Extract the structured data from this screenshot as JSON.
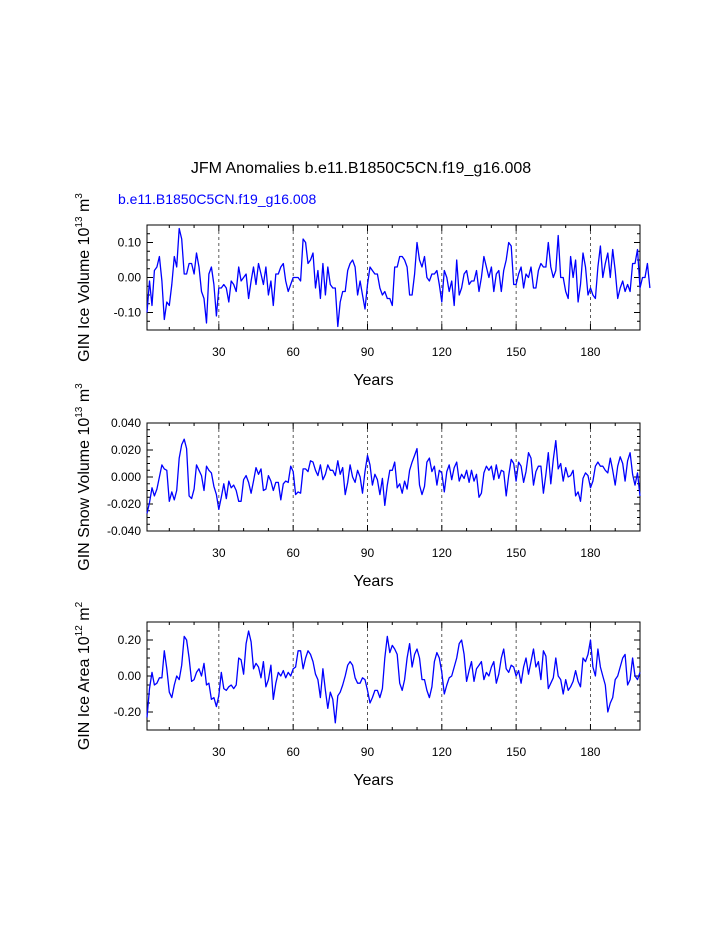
{
  "title": "JFM Anomalies b.e11.B1850C5CN.f19_g16.008",
  "case_label": "b.e11.B1850C5CN.f19_g16.008",
  "line_color": "#0000ff",
  "chart_data": [
    {
      "type": "line",
      "xlabel": "Years",
      "ylabel": "GIN Ice Volume 10",
      "ylabel_exp": "13",
      "ylabel_unit": "m",
      "ylabel_unit_exp": "3",
      "xlim": [
        1,
        200
      ],
      "ylim": [
        -0.15,
        0.15
      ],
      "yticks": [
        -0.1,
        0.0,
        0.1
      ],
      "ytick_labels": [
        "-0.10",
        "0.00",
        "0.10"
      ],
      "xticks": [
        30,
        60,
        90,
        120,
        150,
        180
      ],
      "xtick_labels": [
        "30",
        "60",
        "90",
        "120",
        "150",
        "180"
      ],
      "series": [
        {
          "name": "GIN Ice Volume",
          "values": [
            -0.1,
            -0.01,
            -0.08,
            0.02,
            0.03,
            0.06,
            -0.01,
            -0.12,
            -0.07,
            -0.08,
            -0.02,
            0.06,
            0.03,
            0.14,
            0.11,
            0.01,
            0.01,
            0.04,
            0.04,
            0.01,
            0.07,
            0.03,
            -0.04,
            -0.06,
            -0.13,
            0.01,
            0.03,
            -0.02,
            -0.11,
            -0.03,
            -0.03,
            -0.02,
            -0.03,
            -0.07,
            -0.01,
            -0.02,
            -0.04,
            0.03,
            -0.01,
            0.0,
            0.01,
            -0.06,
            -0.01,
            0.03,
            -0.02,
            0.04,
            0.01,
            -0.02,
            0.03,
            -0.05,
            -0.01,
            -0.08,
            0.01,
            0.01,
            0.03,
            0.04,
            -0.01,
            -0.04,
            -0.02,
            0.0,
            0.0,
            0.0,
            -0.01,
            0.11,
            0.1,
            0.04,
            0.05,
            0.07,
            -0.03,
            0.02,
            -0.06,
            0.04,
            -0.05,
            0.03,
            -0.02,
            -0.03,
            -0.03,
            -0.14,
            -0.07,
            -0.04,
            -0.04,
            0.02,
            0.04,
            0.05,
            0.03,
            -0.05,
            -0.01,
            -0.05,
            -0.09,
            -0.02,
            0.03,
            0.02,
            0.01,
            0.01,
            -0.03,
            -0.05,
            -0.04,
            -0.06,
            -0.06,
            -0.08,
            0.03,
            0.03,
            0.06,
            0.06,
            0.05,
            0.03,
            -0.05,
            -0.05,
            0.01,
            0.1,
            0.05,
            0.03,
            0.06,
            0.0,
            -0.01,
            0.01,
            0.01,
            0.02,
            -0.02,
            -0.07,
            0.02,
            0.0,
            -0.04,
            -0.01,
            -0.08,
            0.05,
            -0.05,
            -0.03,
            0.01,
            0.02,
            -0.02,
            -0.01,
            -0.01,
            0.02,
            -0.04,
            0.0,
            0.06,
            0.03,
            0.0,
            0.03,
            -0.04,
            0.01,
            0.02,
            -0.04,
            0.02,
            0.05,
            0.1,
            0.09,
            -0.02,
            -0.02,
            0.01,
            0.03,
            -0.03,
            0.01,
            0.0,
            0.03,
            -0.03,
            -0.03,
            0.02,
            0.04,
            0.03,
            0.03,
            0.1,
            0.03,
            0.0,
            0.02,
            0.12,
            0.0,
            0.0,
            -0.04,
            -0.06,
            0.06,
            0.0,
            0.05,
            -0.07,
            -0.02,
            0.07,
            0.03,
            -0.05,
            -0.03,
            -0.05,
            -0.06,
            0.03,
            0.09,
            0.0,
            0.04,
            0.07,
            0.0,
            0.08,
            0.02,
            -0.06,
            -0.03,
            -0.01,
            -0.04,
            -0.02,
            -0.04,
            0.04,
            0.04,
            0.08,
            -0.03,
            0.0,
            0.0,
            0.04,
            -0.03
          ]
        }
      ]
    },
    {
      "type": "line",
      "xlabel": "Years",
      "ylabel": "GIN Snow Volume 10",
      "ylabel_exp": "13",
      "ylabel_unit": "m",
      "ylabel_unit_exp": "3",
      "xlim": [
        1,
        200
      ],
      "ylim": [
        -0.04,
        0.04
      ],
      "yticks": [
        -0.04,
        -0.02,
        0.0,
        0.02,
        0.04
      ],
      "ytick_labels": [
        "-0.040",
        "-0.020",
        "0.000",
        "0.020",
        "0.040"
      ],
      "xticks": [
        30,
        60,
        90,
        120,
        150,
        180
      ],
      "xtick_labels": [
        "30",
        "60",
        "90",
        "120",
        "150",
        "180"
      ],
      "series": [
        {
          "name": "GIN Snow Volume",
          "values": [
            -0.027,
            -0.019,
            -0.008,
            -0.014,
            -0.009,
            0.0,
            0.009,
            0.006,
            0.005,
            -0.018,
            -0.011,
            -0.017,
            -0.01,
            0.014,
            0.024,
            0.028,
            0.021,
            -0.014,
            -0.016,
            -0.009,
            0.009,
            0.005,
            0.001,
            -0.01,
            0.008,
            0.005,
            0.003,
            -0.007,
            -0.013,
            -0.024,
            -0.015,
            -0.005,
            -0.016,
            -0.003,
            -0.008,
            -0.006,
            -0.01,
            -0.018,
            -0.018,
            -0.002,
            0.001,
            -0.004,
            -0.012,
            -0.003,
            0.007,
            0.002,
            0.006,
            -0.01,
            -0.009,
            0.001,
            -0.003,
            -0.01,
            -0.004,
            -0.004,
            -0.017,
            -0.005,
            -0.003,
            -0.004,
            0.008,
            0.004,
            -0.013,
            -0.011,
            -0.012,
            0.006,
            0.006,
            0.004,
            0.012,
            0.011,
            0.005,
            0.001,
            0.009,
            -0.002,
            0.002,
            0.009,
            0.005,
            0.005,
            0.001,
            0.012,
            0.002,
            0.007,
            -0.013,
            -0.004,
            0.009,
            0.0,
            -0.004,
            0.005,
            0.0,
            -0.012,
            0.004,
            0.016,
            0.009,
            -0.006,
            0.002,
            -0.002,
            -0.013,
            -0.001,
            -0.021,
            -0.006,
            0.005,
            0.005,
            0.011,
            -0.008,
            -0.005,
            -0.012,
            -0.003,
            -0.009,
            0.005,
            0.011,
            0.016,
            0.021,
            -0.006,
            -0.013,
            -0.007,
            0.011,
            0.014,
            0.004,
            0.008,
            -0.006,
            0.005,
            0.003,
            -0.011,
            0.004,
            0.009,
            -0.002,
            0.007,
            0.011,
            -0.003,
            0.002,
            -0.001,
            0.005,
            -0.004,
            0.005,
            -0.003,
            0.002,
            -0.015,
            -0.012,
            0.003,
            0.008,
            0.005,
            0.008,
            -0.002,
            0.009,
            -0.001,
            0.005,
            0.004,
            -0.014,
            0.001,
            0.013,
            0.01,
            -0.003,
            0.011,
            0.008,
            -0.004,
            0.004,
            0.018,
            0.014,
            -0.006,
            0.004,
            0.008,
            0.008,
            -0.012,
            0.002,
            0.018,
            -0.005,
            0.013,
            0.027,
            0.006,
            0.01,
            -0.003,
            0.007,
            0.0,
            0.001,
            0.005,
            -0.014,
            -0.011,
            -0.018,
            -0.001,
            0.003,
            0.001,
            -0.008,
            -0.003,
            0.008,
            0.011,
            0.008,
            0.008,
            0.005,
            0.003,
            0.014,
            0.005,
            -0.006,
            0.008,
            0.015,
            0.01,
            -0.003,
            0.012,
            0.018,
            0.002,
            -0.006,
            0.003,
            -0.014
          ]
        }
      ]
    },
    {
      "type": "line",
      "xlabel": "Years",
      "ylabel": "GIN Ice Area 10",
      "ylabel_exp": "12",
      "ylabel_unit": "m",
      "ylabel_unit_exp": "2",
      "xlim": [
        1,
        200
      ],
      "ylim": [
        -0.3,
        0.3
      ],
      "yticks": [
        -0.2,
        0.0,
        0.2
      ],
      "ytick_labels": [
        "-0.20",
        "0.00",
        "0.20"
      ],
      "xticks": [
        30,
        60,
        90,
        120,
        150,
        180
      ],
      "xtick_labels": [
        "30",
        "60",
        "90",
        "120",
        "150",
        "180"
      ],
      "series": [
        {
          "name": "GIN Ice Area",
          "values": [
            -0.23,
            -0.07,
            0.02,
            -0.05,
            -0.04,
            -0.01,
            -0.01,
            0.14,
            0.04,
            -0.09,
            -0.12,
            -0.05,
            0.0,
            -0.02,
            0.06,
            0.22,
            0.2,
            0.1,
            -0.03,
            -0.02,
            0.02,
            0.04,
            0.0,
            0.07,
            -0.05,
            -0.04,
            -0.13,
            -0.12,
            -0.17,
            -0.11,
            0.02,
            -0.07,
            -0.08,
            -0.06,
            -0.05,
            -0.07,
            -0.05,
            0.1,
            0.09,
            0.01,
            0.18,
            0.25,
            0.19,
            0.04,
            0.07,
            0.05,
            -0.01,
            0.08,
            -0.06,
            -0.02,
            0.06,
            -0.13,
            -0.04,
            0.02,
            0.0,
            0.03,
            -0.01,
            0.02,
            0.0,
            0.04,
            0.05,
            0.14,
            0.14,
            0.04,
            0.1,
            0.14,
            0.12,
            0.08,
            0.01,
            -0.02,
            -0.12,
            0.04,
            -0.08,
            -0.18,
            -0.09,
            -0.13,
            -0.26,
            -0.11,
            -0.09,
            -0.05,
            0.0,
            0.06,
            0.08,
            0.06,
            -0.01,
            -0.04,
            -0.04,
            -0.01,
            -0.02,
            -0.08,
            -0.15,
            -0.12,
            -0.08,
            -0.08,
            -0.12,
            -0.07,
            0.1,
            0.22,
            0.13,
            0.17,
            0.15,
            0.12,
            -0.04,
            -0.08,
            -0.02,
            0.1,
            0.18,
            0.05,
            0.12,
            0.15,
            0.1,
            -0.02,
            -0.02,
            -0.08,
            -0.12,
            -0.06,
            0.08,
            0.13,
            0.1,
            0.02,
            -0.1,
            -0.05,
            -0.01,
            0.0,
            0.05,
            0.1,
            0.18,
            0.2,
            0.12,
            -0.03,
            0.03,
            0.08,
            -0.03,
            0.04,
            0.06,
            0.08,
            -0.02,
            0.02,
            0.0,
            0.05,
            0.08,
            -0.04,
            0.01,
            0.1,
            0.15,
            0.04,
            0.02,
            0.06,
            0.05,
            0.0,
            0.03,
            -0.04,
            0.05,
            0.1,
            0.01,
            0.08,
            0.15,
            0.05,
            0.08,
            -0.02,
            0.14,
            0.11,
            -0.07,
            -0.04,
            -0.01,
            0.1,
            0.0,
            -0.02,
            -0.1,
            -0.02,
            -0.08,
            -0.06,
            -0.03,
            0.03,
            -0.03,
            -0.06,
            0.1,
            0.08,
            0.12,
            0.2,
            0.05,
            0.0,
            0.15,
            0.05,
            0.0,
            -0.05,
            -0.2,
            -0.15,
            -0.12,
            -0.02,
            0.0,
            0.05,
            0.1,
            0.12,
            -0.05,
            -0.02,
            0.1,
            0.0,
            -0.02,
            0.02
          ]
        }
      ]
    }
  ]
}
